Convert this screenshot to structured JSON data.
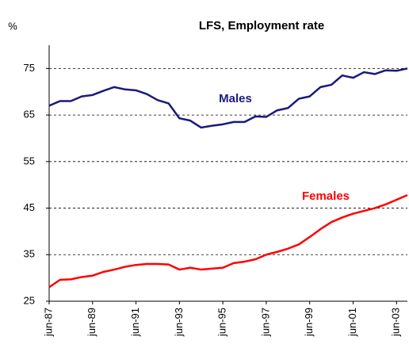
{
  "chart_data": {
    "type": "line",
    "title": "LFS, Employment rate",
    "y_unit": "%",
    "categories": [
      "jun-87",
      null,
      null,
      null,
      "jun-89",
      null,
      null,
      null,
      "jun-91",
      null,
      null,
      null,
      "jun-93",
      null,
      null,
      null,
      "jun-95",
      null,
      null,
      null,
      "jun-97",
      null,
      null,
      null,
      "jun-99",
      null,
      null,
      null,
      "jun-01",
      null,
      null,
      null,
      "jun-03",
      null
    ],
    "series": [
      {
        "name": "Males",
        "color": "#1a1a7a",
        "values": [
          67,
          68,
          68,
          69,
          69.3,
          70.2,
          71,
          70.5,
          70.3,
          69.5,
          68.2,
          67.5,
          64.3,
          63.8,
          62.3,
          62.7,
          63,
          63.5,
          63.5,
          64.7,
          64.6,
          66,
          66.5,
          68.5,
          69,
          71,
          71.5,
          73.5,
          73,
          74.2,
          73.8,
          74.6,
          74.5,
          75
        ]
      },
      {
        "name": "Females",
        "color": "#ff0000",
        "values": [
          28,
          29.6,
          29.7,
          30.2,
          30.5,
          31.3,
          31.8,
          32.4,
          32.8,
          33,
          33,
          32.9,
          31.8,
          32.2,
          31.8,
          32,
          32.2,
          33.2,
          33.5,
          34,
          35,
          35.6,
          36.3,
          37.2,
          38.8,
          40.5,
          42,
          43,
          43.8,
          44.4,
          45,
          45.8,
          46.8,
          47.8
        ]
      }
    ],
    "ylim": [
      25,
      80
    ],
    "yticks": [
      25,
      35,
      45,
      55,
      65,
      75
    ],
    "grid": true
  }
}
